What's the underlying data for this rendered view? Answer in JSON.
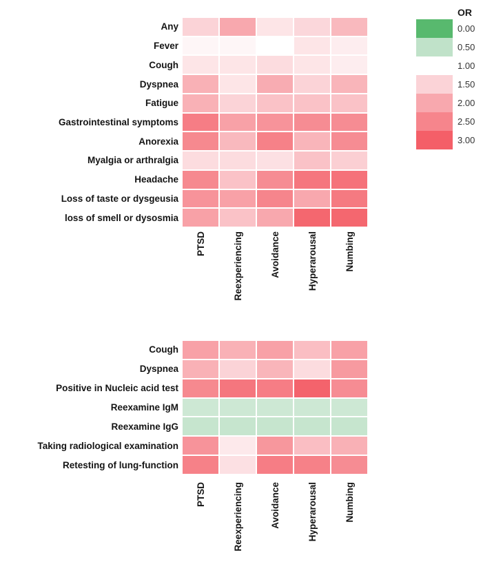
{
  "figure": {
    "background": "#ffffff"
  },
  "legend": {
    "title": "OR",
    "stops": [
      {
        "label": "0.00",
        "color": "#58b96e"
      },
      {
        "label": "0.50",
        "color": "#c0e2c9"
      },
      {
        "label": "1.00",
        "color": "#ffffff"
      },
      {
        "label": "1.50",
        "color": "#fbd3d7"
      },
      {
        "label": "2.00",
        "color": "#f8a8ae"
      },
      {
        "label": "2.50",
        "color": "#f6858c"
      },
      {
        "label": "3.00",
        "color": "#f45f68"
      }
    ]
  },
  "chart_data": {
    "type": "heatmap",
    "value_label": "OR",
    "value_range": [
      0,
      3
    ],
    "columns": [
      "PTSD",
      "Reexperiencing",
      "Avoidance",
      "Hyperarousal",
      "Numbing"
    ],
    "color_scale_anchors": [
      [
        0.0,
        "#58b96e"
      ],
      [
        0.5,
        "#c0e2c9"
      ],
      [
        1.0,
        "#ffffff"
      ],
      [
        1.5,
        "#fbd3d7"
      ],
      [
        2.0,
        "#f8a8ae"
      ],
      [
        2.5,
        "#f6858c"
      ],
      [
        3.0,
        "#f45f68"
      ]
    ],
    "panels": [
      {
        "name": "symptoms",
        "rows": [
          {
            "label": "Any",
            "values": [
              1.5,
              2.0,
              1.3,
              1.45,
              1.8
            ]
          },
          {
            "label": "Fever",
            "values": [
              1.1,
              1.1,
              1.0,
              1.3,
              1.2
            ]
          },
          {
            "label": "Cough",
            "values": [
              1.3,
              1.3,
              1.4,
              1.3,
              1.2
            ]
          },
          {
            "label": "Dyspnea",
            "values": [
              1.9,
              1.3,
              1.95,
              1.5,
              1.85
            ]
          },
          {
            "label": "Fatigue",
            "values": [
              1.9,
              1.5,
              1.7,
              1.7,
              1.7
            ]
          },
          {
            "label": "Gastrointestinal symptoms",
            "values": [
              2.6,
              2.1,
              2.3,
              2.4,
              2.4
            ]
          },
          {
            "label": "Anorexia",
            "values": [
              2.45,
              1.8,
              2.55,
              1.85,
              2.4
            ]
          },
          {
            "label": "Myalgia or arthralgia",
            "values": [
              1.4,
              1.4,
              1.35,
              1.7,
              1.55
            ]
          },
          {
            "label": "Headache",
            "values": [
              2.45,
              1.7,
              2.4,
              2.7,
              2.75
            ]
          },
          {
            "label": "Loss of taste or dysgeusia",
            "values": [
              2.3,
              2.1,
              2.5,
              2.0,
              2.65
            ]
          },
          {
            "label": "loss of smell or dysosmia",
            "values": [
              2.1,
              1.7,
              2.0,
              2.9,
              2.9
            ]
          }
        ]
      },
      {
        "name": "clinical-findings",
        "rows": [
          {
            "label": "Cough",
            "values": [
              2.1,
              1.9,
              2.1,
              1.75,
              2.1
            ]
          },
          {
            "label": "Dyspnea",
            "values": [
              1.9,
              1.5,
              1.85,
              1.4,
              2.2
            ]
          },
          {
            "label": "Positive in Nucleic acid test",
            "values": [
              2.45,
              2.7,
              2.6,
              2.95,
              2.4
            ]
          },
          {
            "label": "Reexamine IgM",
            "values": [
              0.6,
              0.6,
              0.6,
              0.6,
              0.6
            ]
          },
          {
            "label": "Reexamine IgG",
            "values": [
              0.55,
              0.55,
              0.55,
              0.55,
              0.55
            ]
          },
          {
            "label": "Taking radiological examination",
            "values": [
              2.3,
              1.25,
              2.25,
              1.75,
              1.9
            ]
          },
          {
            "label": "Retesting of lung-function",
            "values": [
              2.55,
              1.35,
              2.6,
              2.55,
              2.4
            ]
          }
        ]
      }
    ]
  }
}
